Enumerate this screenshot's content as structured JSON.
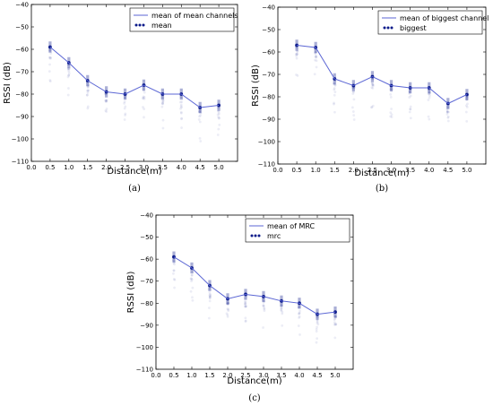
{
  "chart_data": [
    {
      "type": "scatter",
      "panel_label": "(a)",
      "xlabel": "Distance(m)",
      "ylabel": "RSSI (dB)",
      "xlim": [
        0.0,
        5.5
      ],
      "ylim": [
        -110,
        -40
      ],
      "xticks": [
        "0.0",
        "0.5",
        "1.0",
        "1.5",
        "2.0",
        "2.5",
        "3.0",
        "3.5",
        "4.0",
        "4.5",
        "5.0"
      ],
      "yticks": [
        "−110",
        "−100",
        "−90",
        "−80",
        "−70",
        "−60",
        "−50",
        "−40"
      ],
      "grid": false,
      "legend_position": "top-right",
      "x": [
        0.5,
        1.0,
        1.5,
        2.0,
        2.5,
        3.0,
        3.5,
        4.0,
        4.5,
        5.0
      ],
      "series": [
        {
          "name": "mean of mean channels",
          "kind": "line",
          "values": [
            -59,
            -66,
            -74,
            -79,
            -80,
            -76,
            -80,
            -80,
            -86,
            -85
          ]
        },
        {
          "name": "mean",
          "kind": "points",
          "values": [
            -59,
            -66,
            -74,
            -79,
            -80,
            -76,
            -80,
            -80,
            -86,
            -85
          ]
        }
      ],
      "line_color": "#5b66d4",
      "point_color": "#0b1a8a"
    },
    {
      "type": "scatter",
      "panel_label": "(b)",
      "xlabel": "Distance(m)",
      "ylabel": "RSSI (dB)",
      "xlim": [
        0.0,
        5.5
      ],
      "ylim": [
        -110,
        -40
      ],
      "xticks": [
        "0.0",
        "0.5",
        "1.0",
        "1.5",
        "2.0",
        "2.5",
        "3.0",
        "3.5",
        "4.0",
        "4.5",
        "5.0"
      ],
      "yticks": [
        "−110",
        "−100",
        "−90",
        "−80",
        "−70",
        "−60",
        "−50",
        "−40"
      ],
      "grid": false,
      "legend_position": "top-right",
      "x": [
        0.5,
        1.0,
        1.5,
        2.0,
        2.5,
        3.0,
        3.5,
        4.0,
        4.5,
        5.0
      ],
      "series": [
        {
          "name": "mean of biggest channel",
          "kind": "line",
          "values": [
            -57,
            -58,
            -72,
            -75,
            -71,
            -75,
            -76,
            -76,
            -83,
            -79
          ]
        },
        {
          "name": "biggest",
          "kind": "points",
          "values": [
            -57,
            -58,
            -72,
            -75,
            -71,
            -75,
            -76,
            -76,
            -83,
            -79
          ]
        }
      ],
      "line_color": "#5b66d4",
      "point_color": "#0b1a8a"
    },
    {
      "type": "scatter",
      "panel_label": "(c)",
      "xlabel": "Distance(m)",
      "ylabel": "RSSI (dB)",
      "xlim": [
        0.0,
        5.5
      ],
      "ylim": [
        -110,
        -40
      ],
      "xticks": [
        "0.0",
        "0.5",
        "1.0",
        "1.5",
        "2.0",
        "2.5",
        "3.0",
        "3.5",
        "4.0",
        "4.5",
        "5.0"
      ],
      "yticks": [
        "−110",
        "−100",
        "−90",
        "−80",
        "−70",
        "−60",
        "−50",
        "−40"
      ],
      "grid": false,
      "legend_position": "top-right",
      "x": [
        0.5,
        1.0,
        1.5,
        2.0,
        2.5,
        3.0,
        3.5,
        4.0,
        4.5,
        5.0
      ],
      "series": [
        {
          "name": "mean of MRC",
          "kind": "line",
          "values": [
            -59,
            -64,
            -72,
            -78,
            -76,
            -77,
            -79,
            -80,
            -85,
            -84
          ]
        },
        {
          "name": "mrc",
          "kind": "points",
          "values": [
            -59,
            -64,
            -72,
            -78,
            -76,
            -77,
            -79,
            -80,
            -85,
            -84
          ]
        }
      ],
      "line_color": "#5b66d4",
      "point_color": "#0b1a8a"
    }
  ]
}
